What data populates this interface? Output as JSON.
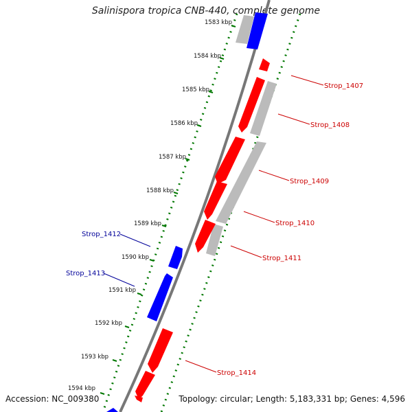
{
  "title": "Salinispora tropica CNB-440, complete genome",
  "accession": "Accession: NC_009380",
  "topology": "Topology: circular; Length: 5,183,331 bp; Genes: 4,596",
  "colors": {
    "forward_gene": "#ff0000",
    "reverse_gene": "#0000ff",
    "grey_feature": "#bbbbbb",
    "backbone": "#777777",
    "tick_track": "#007700",
    "forward_label": "#cc0000",
    "reverse_label": "#000099"
  },
  "ticks": [
    "1583 kbp",
    "1584 kbp",
    "1585 kbp",
    "1586 kbp",
    "1587 kbp",
    "1588 kbp",
    "1589 kbp",
    "1590 kbp",
    "1591 kbp",
    "1592 kbp",
    "1593 kbp",
    "1594 kbp"
  ],
  "gene_labels": {
    "forward": [
      "Strop_1407",
      "Strop_1408",
      "Strop_1409",
      "Strop_1410",
      "Strop_1411",
      "Strop_1414"
    ],
    "reverse": [
      "Strop_1412",
      "Strop_1413"
    ]
  }
}
